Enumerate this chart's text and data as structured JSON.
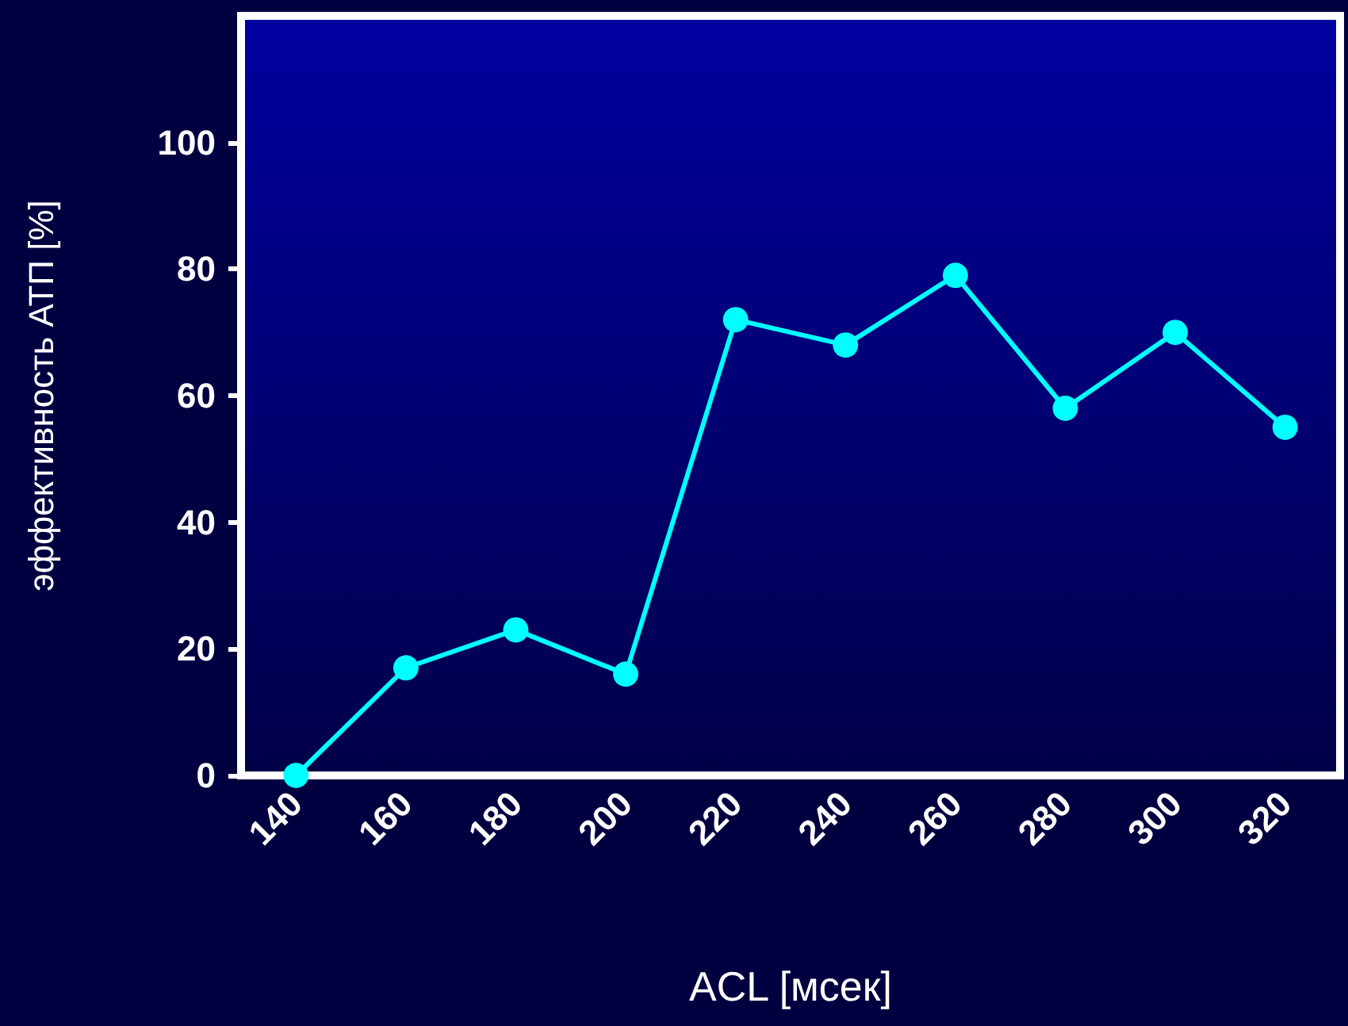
{
  "chart_data": {
    "type": "line",
    "xlabel": "ACL [мсек]",
    "ylabel": "эффективность АТП [%]",
    "categories": [
      "140",
      "160",
      "180",
      "200",
      "220",
      "240",
      "260",
      "280",
      "300",
      "320"
    ],
    "series": [
      {
        "color": "#00ffff",
        "values": [
          0,
          17,
          23,
          16,
          72,
          68,
          79,
          58,
          70,
          55
        ]
      }
    ],
    "ylim": [
      0,
      120
    ],
    "yticks": [
      0,
      20,
      40,
      60,
      80,
      100
    ],
    "marker": "circle",
    "grid": false
  }
}
